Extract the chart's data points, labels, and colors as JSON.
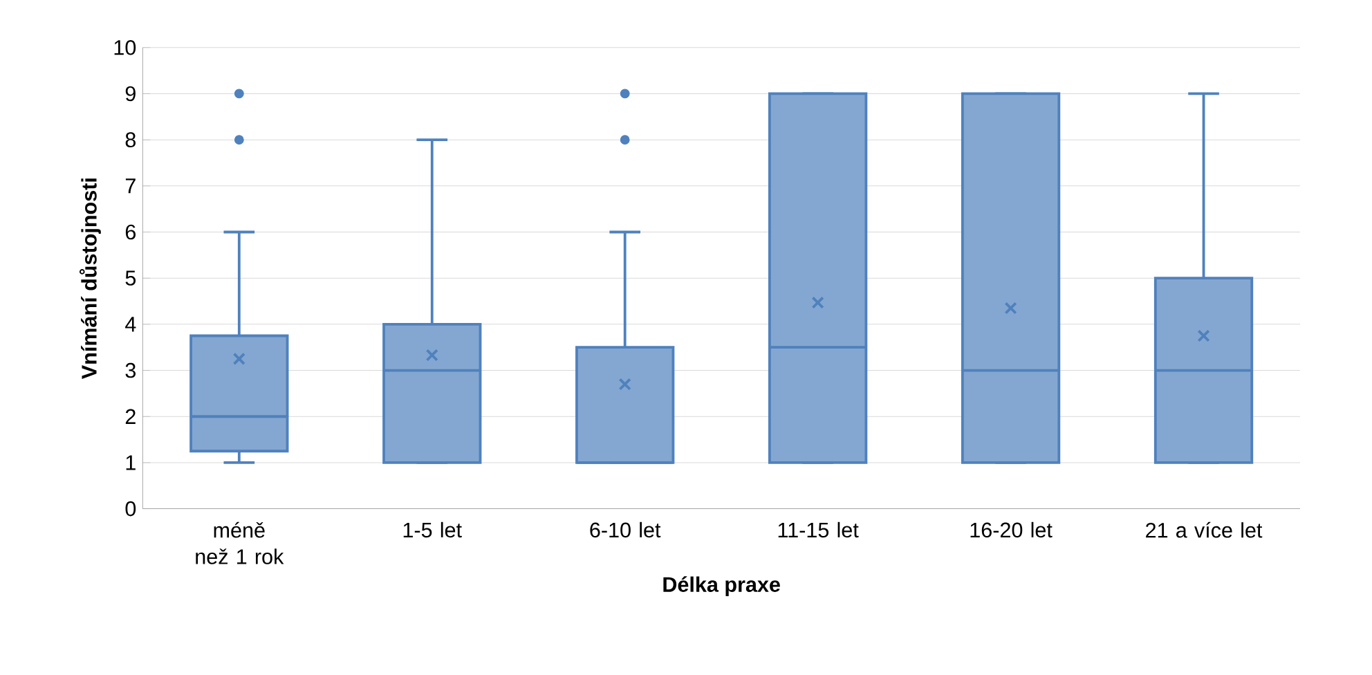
{
  "chart_data": {
    "type": "box",
    "xlabel": "Délka praxe",
    "ylabel": "Vnímání důstojnosti",
    "categories": [
      "méně než 1 rok",
      "1-5 let",
      "6-10 let",
      "11-15 let",
      "16-20 let",
      "21 a více let"
    ],
    "ylim": [
      0,
      10
    ],
    "yticks": [
      0,
      1,
      2,
      3,
      4,
      5,
      6,
      7,
      8,
      9,
      10
    ],
    "grid": "y",
    "marker": "cross",
    "series": [
      {
        "color": "#4f81bd",
        "boxes": [
          {
            "low": 1,
            "q1": 1.25,
            "median": 2,
            "q3": 3.75,
            "high": 6,
            "mean": 3.25,
            "outliers": [
              8,
              9
            ]
          },
          {
            "low": 1,
            "q1": 1,
            "median": 3,
            "q3": 4,
            "high": 8,
            "mean": 3.33
          },
          {
            "low": 1,
            "q1": 1,
            "median": 1,
            "q3": 3.5,
            "high": 6,
            "mean": 2.7,
            "outliers": [
              8,
              9
            ]
          },
          {
            "low": 1,
            "q1": 1,
            "median": 3.5,
            "q3": 9,
            "high": 9,
            "mean": 4.47
          },
          {
            "low": 1,
            "q1": 1,
            "median": 3,
            "q3": 9,
            "high": 9,
            "mean": 4.35
          },
          {
            "low": 1,
            "q1": 1,
            "median": 3,
            "q3": 5,
            "high": 9,
            "mean": 3.75
          }
        ]
      }
    ]
  }
}
